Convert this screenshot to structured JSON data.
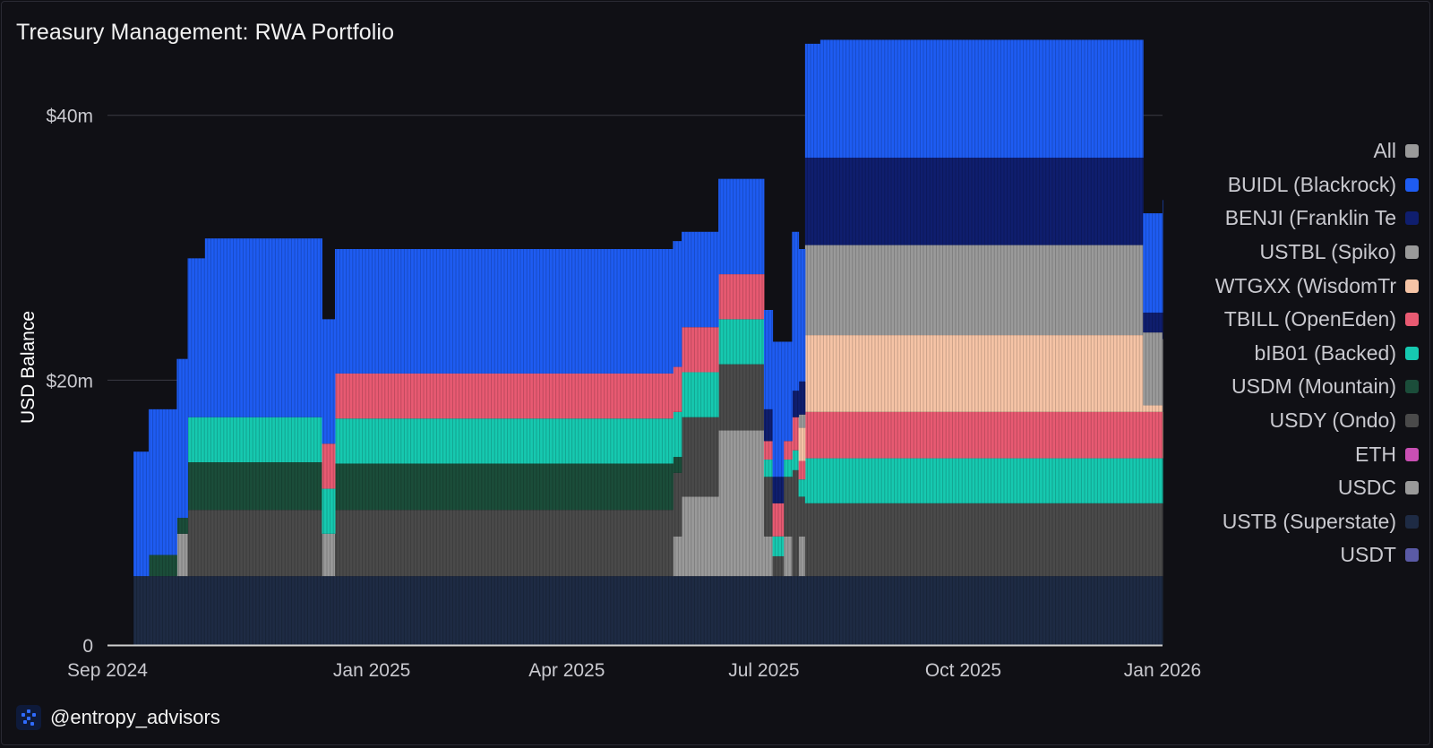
{
  "title": "Treasury Management: RWA Portfolio",
  "brand": {
    "handle": "@entropy_advisors",
    "logo_icon": "entropy-logo-icon"
  },
  "colors": {
    "background": "#101015",
    "gridline": "#3a3a44",
    "axis_text": "#c9c9cf"
  },
  "chart_data": {
    "type": "area",
    "stacked": true,
    "title": "Treasury Management: RWA Portfolio",
    "xlabel": "",
    "ylabel": "USD Balance",
    "y_unit": "USD millions",
    "ylim": [
      0,
      46
    ],
    "xlim": [
      "2024-09-01",
      "2026-01-01"
    ],
    "y_ticks": [
      {
        "value": 0,
        "label": "0"
      },
      {
        "value": 20,
        "label": "$20m"
      },
      {
        "value": 40,
        "label": "$40m"
      }
    ],
    "x_ticks": [
      {
        "value": "2024-09-01",
        "label": "Sep 2024"
      },
      {
        "value": "2025-01-01",
        "label": "Jan 2025"
      },
      {
        "value": "2025-04-01",
        "label": "Apr 2025"
      },
      {
        "value": "2025-07-01",
        "label": "Jul 2025"
      },
      {
        "value": "2025-10-01",
        "label": "Oct 2025"
      },
      {
        "value": "2026-01-01",
        "label": "Jan 2026"
      }
    ],
    "x": [
      "2024-09-01",
      "2024-09-13",
      "2024-09-20",
      "2024-10-03",
      "2024-10-08",
      "2024-10-16",
      "2024-11-20",
      "2024-12-09",
      "2024-12-15",
      "2025-01-15",
      "2025-05-20",
      "2025-05-24",
      "2025-06-10",
      "2025-06-16",
      "2025-07-01",
      "2025-07-05",
      "2025-07-10",
      "2025-07-14",
      "2025-07-17",
      "2025-07-20",
      "2025-07-27",
      "2025-12-20",
      "2025-12-23",
      "2026-01-01"
    ],
    "series": [
      {
        "name": "USTB (Superstate)",
        "color": "#1e2b44",
        "values": [
          0,
          5.2,
          5.2,
          5.2,
          5.2,
          5.2,
          5.2,
          5.2,
          5.2,
          5.2,
          5.2,
          5.2,
          5.2,
          5.2,
          5.2,
          5.2,
          5.2,
          5.2,
          5.2,
          5.2,
          5.2,
          5.2,
          5.2,
          5.2
        ]
      },
      {
        "name": "USDC",
        "color": "#9a9a9a",
        "values": [
          0,
          0,
          0,
          3.2,
          0,
          0,
          0,
          3.2,
          0,
          0,
          0,
          0,
          0,
          0,
          0,
          0,
          0,
          0,
          0,
          0,
          0,
          0,
          0,
          0
        ]
      },
      {
        "name": "USTBL (Spiko)",
        "color": "#9a9a9a",
        "values": [
          0,
          0,
          0,
          0,
          0,
          0,
          0,
          0,
          0,
          0,
          3.0,
          6.0,
          11.0,
          11.0,
          3.0,
          0,
          3.0,
          0,
          3.0,
          0,
          0,
          0,
          0,
          0
        ]
      },
      {
        "name": "USDY (Ondo)",
        "color": "#4a4a4a",
        "values": [
          0,
          0,
          0,
          0,
          5.0,
          5.0,
          5.0,
          0,
          5.0,
          5.0,
          4.8,
          6.0,
          5.0,
          5.0,
          4.5,
          1.5,
          4.5,
          8.0,
          3.0,
          5.5,
          5.5,
          5.5,
          5.5,
          5.5
        ]
      },
      {
        "name": "USDM (Mountain)",
        "color": "#1b4d3a",
        "values": [
          0,
          0,
          1.6,
          1.2,
          3.6,
          3.6,
          3.6,
          0,
          3.5,
          3.5,
          1.2,
          0,
          0,
          0,
          0,
          0,
          0,
          0,
          0,
          0,
          0,
          0,
          0,
          0
        ]
      },
      {
        "name": "bIB01 (Backed)",
        "color": "#16c9b0",
        "values": [
          0,
          0,
          0,
          0,
          3.4,
          3.4,
          3.4,
          3.4,
          3.4,
          3.4,
          3.4,
          3.4,
          3.4,
          3.4,
          1.3,
          1.5,
          1.3,
          1.5,
          1.3,
          3.4,
          3.4,
          3.4,
          3.4,
          3.4
        ]
      },
      {
        "name": "TBILL (OpenEden)",
        "color": "#e85a72",
        "values": [
          0,
          0,
          0,
          0,
          0,
          0,
          0,
          3.4,
          3.4,
          3.4,
          3.4,
          3.4,
          3.4,
          3.4,
          1.4,
          2.5,
          1.4,
          2.5,
          1.4,
          3.5,
          3.5,
          3.5,
          3.5,
          0
        ]
      },
      {
        "name": "WTGXX (WisdomTree)",
        "color": "#f6c4a6",
        "values": [
          0,
          0,
          0,
          0,
          0,
          0,
          0,
          0,
          0,
          0,
          0,
          0,
          0,
          0,
          0,
          0,
          0,
          0,
          2.5,
          5.8,
          5.8,
          5.8,
          0.5,
          3.5
        ]
      },
      {
        "name": "USTBL (Spiko)",
        "color": "#9a9a9a",
        "values": [
          0,
          0,
          0,
          0,
          0,
          0,
          0,
          0,
          0,
          0,
          0,
          0,
          0,
          0,
          0,
          0,
          0,
          0,
          1.0,
          6.8,
          6.8,
          6.8,
          5.5,
          5.5
        ]
      },
      {
        "name": "BENJI (Franklin Templeton)",
        "color": "#0f1e6e",
        "values": [
          0,
          0,
          0,
          0,
          0,
          0,
          0,
          0,
          0,
          0,
          0,
          0,
          0,
          0,
          2.4,
          2.0,
          0,
          2.0,
          2.5,
          6.6,
          6.6,
          6.6,
          1.5,
          2.5
        ]
      },
      {
        "name": "BUIDL (Blackrock)",
        "color": "#1e5cf2",
        "values": [
          0,
          9.4,
          11.0,
          12.0,
          12.0,
          13.5,
          13.5,
          9.4,
          9.4,
          9.4,
          9.5,
          7.2,
          7.2,
          7.2,
          7.5,
          10.2,
          7.5,
          12.0,
          10.0,
          8.6,
          8.9,
          8.9,
          7.5,
          8.0
        ]
      }
    ]
  },
  "legend": {
    "items": [
      {
        "label": "All",
        "color": "#9a9a9a",
        "icon": "legend-swatch-all"
      },
      {
        "label": "BUIDL (Blackrock)",
        "color": "#1e5cf2",
        "icon": "legend-swatch-buidl"
      },
      {
        "label": "BENJI (Franklin Te",
        "color": "#0f1e6e",
        "icon": "legend-swatch-benji"
      },
      {
        "label": "USTBL (Spiko)",
        "color": "#9a9a9a",
        "icon": "legend-swatch-ustbl"
      },
      {
        "label": "WTGXX (WisdomTr",
        "color": "#f6c4a6",
        "icon": "legend-swatch-wtgxx"
      },
      {
        "label": "TBILL (OpenEden)",
        "color": "#e85a72",
        "icon": "legend-swatch-tbill"
      },
      {
        "label": "bIB01 (Backed)",
        "color": "#16c9b0",
        "icon": "legend-swatch-bib01"
      },
      {
        "label": "USDM (Mountain)",
        "color": "#1b4d3a",
        "icon": "legend-swatch-usdm"
      },
      {
        "label": "USDY (Ondo)",
        "color": "#4a4a4a",
        "icon": "legend-swatch-usdy"
      },
      {
        "label": "ETH",
        "color": "#c94fb3",
        "icon": "legend-swatch-eth"
      },
      {
        "label": "USDC",
        "color": "#9a9a9a",
        "icon": "legend-swatch-usdc"
      },
      {
        "label": "USTB (Superstate)",
        "color": "#1e2b44",
        "icon": "legend-swatch-ustb"
      },
      {
        "label": "USDT",
        "color": "#5a5aa6",
        "icon": "legend-swatch-usdt"
      }
    ]
  }
}
